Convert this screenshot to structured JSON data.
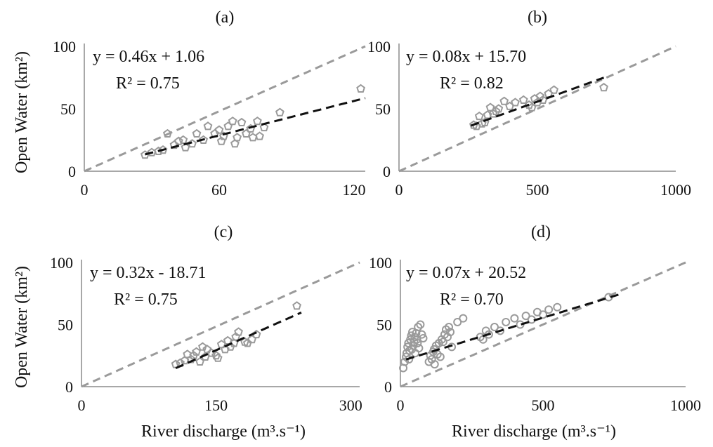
{
  "colors": {
    "axis": "#8c8c8c",
    "marker": "#9a9a9a",
    "one_to_one": "#9a9a9a",
    "fit": "#111111",
    "text": "#111111"
  },
  "figure": {
    "ylabel": "Open Water (km²)",
    "xlabel": "River discharge (m³.s⁻¹)"
  },
  "chart_data": [
    {
      "type": "scatter",
      "title": "(a)",
      "marker": "pentagon",
      "equation": "y = 0.46x + 1.06",
      "r2": "R² = 0.75",
      "xlim": [
        0,
        125
      ],
      "ylim": [
        0,
        100
      ],
      "xticks": [
        0,
        60,
        120
      ],
      "yticks": [
        0,
        50,
        100
      ],
      "show_xlabel": false,
      "show_ylabel": true,
      "fit": {
        "slope": 0.46,
        "intercept": 1.06,
        "x_range": [
          27,
          125
        ]
      },
      "one_to_one": {
        "x_range": [
          0,
          125
        ]
      },
      "points": [
        [
          27,
          13
        ],
        [
          30,
          15
        ],
        [
          33,
          16
        ],
        [
          35,
          17
        ],
        [
          37,
          30
        ],
        [
          40,
          21
        ],
        [
          42,
          24
        ],
        [
          44,
          25
        ],
        [
          45,
          19
        ],
        [
          48,
          22
        ],
        [
          50,
          30
        ],
        [
          53,
          25
        ],
        [
          55,
          36
        ],
        [
          58,
          30
        ],
        [
          60,
          33
        ],
        [
          61,
          24
        ],
        [
          62,
          28
        ],
        [
          64,
          36
        ],
        [
          66,
          40
        ],
        [
          67,
          22
        ],
        [
          68,
          27
        ],
        [
          70,
          39
        ],
        [
          72,
          30
        ],
        [
          74,
          34
        ],
        [
          75,
          27
        ],
        [
          77,
          40
        ],
        [
          78,
          28
        ],
        [
          80,
          35
        ],
        [
          87,
          47
        ],
        [
          123,
          66
        ]
      ]
    },
    {
      "type": "scatter",
      "title": "(b)",
      "marker": "pentagon",
      "equation": "y = 0.08x + 15.70",
      "r2": "R² = 0.82",
      "xlim": [
        0,
        1000
      ],
      "ylim": [
        0,
        100
      ],
      "xticks": [
        0,
        500,
        1000
      ],
      "yticks": [
        0,
        50,
        100
      ],
      "show_xlabel": false,
      "show_ylabel": false,
      "fit": {
        "slope": 0.08,
        "intercept": 15.7,
        "x_range": [
          260,
          740
        ]
      },
      "one_to_one": {
        "x_range": [
          0,
          1000
        ]
      },
      "points": [
        [
          270,
          37
        ],
        [
          280,
          36
        ],
        [
          290,
          44
        ],
        [
          300,
          38
        ],
        [
          310,
          39
        ],
        [
          320,
          45
        ],
        [
          330,
          51
        ],
        [
          340,
          46
        ],
        [
          350,
          48
        ],
        [
          360,
          50
        ],
        [
          380,
          56
        ],
        [
          400,
          52
        ],
        [
          420,
          55
        ],
        [
          450,
          57
        ],
        [
          470,
          53
        ],
        [
          480,
          51
        ],
        [
          490,
          58
        ],
        [
          500,
          55
        ],
        [
          510,
          60
        ],
        [
          520,
          57
        ],
        [
          540,
          62
        ],
        [
          560,
          65
        ],
        [
          740,
          67
        ]
      ]
    },
    {
      "type": "scatter",
      "title": "(c)",
      "marker": "pentagon",
      "equation": "y = 0.32x - 18.71",
      "r2": "R² = 0.75",
      "xlim": [
        0,
        310
      ],
      "ylim": [
        0,
        100
      ],
      "xticks": [
        0,
        150,
        300
      ],
      "yticks": [
        0,
        50,
        100
      ],
      "show_xlabel": true,
      "show_ylabel": true,
      "fit": {
        "slope": 0.32,
        "intercept": -18.71,
        "x_range": [
          105,
          245
        ]
      },
      "one_to_one": {
        "x_range": [
          0,
          310
        ]
      },
      "points": [
        [
          105,
          18
        ],
        [
          110,
          19
        ],
        [
          115,
          21
        ],
        [
          118,
          26
        ],
        [
          122,
          22
        ],
        [
          125,
          25
        ],
        [
          128,
          28
        ],
        [
          132,
          20
        ],
        [
          135,
          32
        ],
        [
          138,
          24
        ],
        [
          140,
          30
        ],
        [
          145,
          27
        ],
        [
          150,
          25
        ],
        [
          152,
          23
        ],
        [
          156,
          34
        ],
        [
          160,
          30
        ],
        [
          163,
          37
        ],
        [
          166,
          32
        ],
        [
          170,
          35
        ],
        [
          172,
          40
        ],
        [
          175,
          44
        ],
        [
          182,
          36
        ],
        [
          185,
          35
        ],
        [
          190,
          38
        ],
        [
          195,
          42
        ],
        [
          240,
          65
        ]
      ]
    },
    {
      "type": "scatter",
      "title": "(d)",
      "marker": "circle",
      "equation": "y = 0.07x + 20.52",
      "r2": "R² = 0.70",
      "xlim": [
        0,
        1000
      ],
      "ylim": [
        0,
        100
      ],
      "xticks": [
        0,
        500,
        1000
      ],
      "yticks": [
        0,
        50,
        100
      ],
      "show_xlabel": true,
      "show_ylabel": false,
      "fit": {
        "slope": 0.07,
        "intercept": 20.52,
        "x_range": [
          20,
          770
        ]
      },
      "one_to_one": {
        "x_range": [
          0,
          1000
        ]
      },
      "points": [
        [
          10,
          15
        ],
        [
          15,
          20
        ],
        [
          20,
          24
        ],
        [
          22,
          27
        ],
        [
          25,
          32
        ],
        [
          28,
          35
        ],
        [
          30,
          22
        ],
        [
          32,
          29
        ],
        [
          35,
          38
        ],
        [
          38,
          41
        ],
        [
          40,
          30
        ],
        [
          42,
          44
        ],
        [
          45,
          33
        ],
        [
          48,
          36
        ],
        [
          50,
          40
        ],
        [
          52,
          27
        ],
        [
          55,
          43
        ],
        [
          58,
          38
        ],
        [
          60,
          35
        ],
        [
          62,
          48
        ],
        [
          65,
          31
        ],
        [
          70,
          50
        ],
        [
          75,
          42
        ],
        [
          80,
          39
        ],
        [
          100,
          20
        ],
        [
          105,
          25
        ],
        [
          110,
          22
        ],
        [
          115,
          28
        ],
        [
          118,
          30
        ],
        [
          120,
          18
        ],
        [
          125,
          33
        ],
        [
          130,
          26
        ],
        [
          135,
          35
        ],
        [
          140,
          24
        ],
        [
          145,
          38
        ],
        [
          150,
          36
        ],
        [
          155,
          42
        ],
        [
          160,
          46
        ],
        [
          165,
          40
        ],
        [
          170,
          48
        ],
        [
          175,
          44
        ],
        [
          180,
          32
        ],
        [
          200,
          52
        ],
        [
          220,
          55
        ],
        [
          280,
          40
        ],
        [
          290,
          38
        ],
        [
          300,
          45
        ],
        [
          310,
          42
        ],
        [
          330,
          48
        ],
        [
          350,
          45
        ],
        [
          370,
          52
        ],
        [
          400,
          55
        ],
        [
          420,
          50
        ],
        [
          440,
          57
        ],
        [
          460,
          54
        ],
        [
          480,
          60
        ],
        [
          500,
          58
        ],
        [
          520,
          62
        ],
        [
          550,
          64
        ],
        [
          730,
          72
        ]
      ]
    }
  ]
}
